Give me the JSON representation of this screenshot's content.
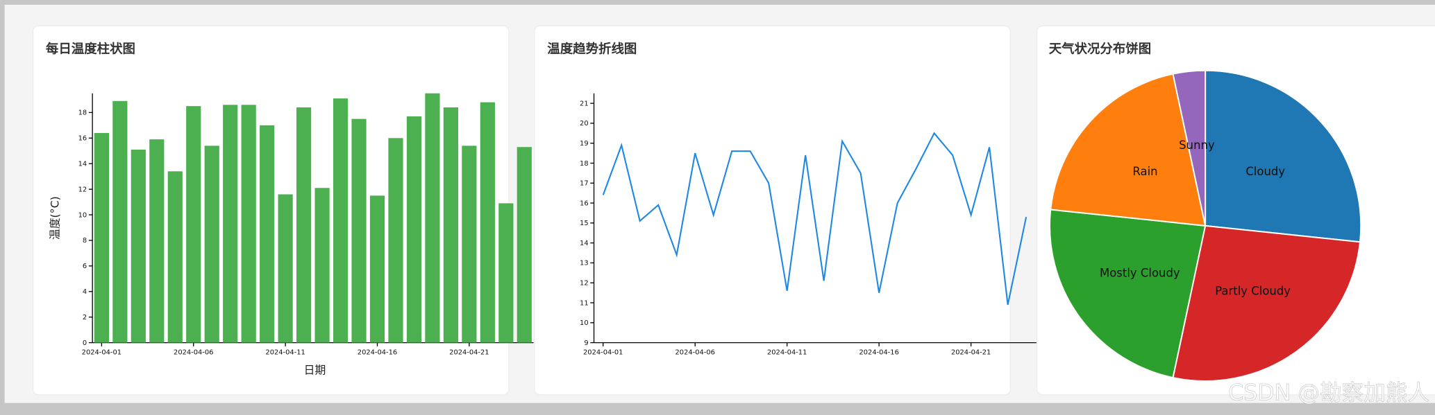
{
  "chart_data": [
    {
      "type": "bar",
      "title": "每日温度柱状图",
      "ylabel": "温度(°C)",
      "xlabel": "日期",
      "color": "#4caf50",
      "x": [
        "2024-04-01",
        "2024-04-02",
        "2024-04-03",
        "2024-04-04",
        "2024-04-05",
        "2024-04-06",
        "2024-04-07",
        "2024-04-08",
        "2024-04-09",
        "2024-04-10",
        "2024-04-11",
        "2024-04-12",
        "2024-04-13",
        "2024-04-14",
        "2024-04-15",
        "2024-04-16",
        "2024-04-17",
        "2024-04-18",
        "2024-04-19",
        "2024-04-20",
        "2024-04-21",
        "2024-04-22",
        "2024-04-23",
        "2024-04-24"
      ],
      "values": [
        16.4,
        18.9,
        15.1,
        15.9,
        13.4,
        18.5,
        15.4,
        18.6,
        18.6,
        17.0,
        11.6,
        18.4,
        12.1,
        19.1,
        17.5,
        11.5,
        16.0,
        17.7,
        19.5,
        18.4,
        15.4,
        18.8,
        10.9,
        15.3
      ],
      "ylim": [
        0,
        19.5
      ],
      "yticks": [
        0,
        2,
        4,
        6,
        8,
        10,
        12,
        14,
        16,
        18
      ],
      "xticks": [
        "2024-04-01",
        "2024-04-06",
        "2024-04-11",
        "2024-04-16",
        "2024-04-21"
      ]
    },
    {
      "type": "line",
      "title": "温度趋势折线图",
      "color": "#1e88e5",
      "x": [
        "2024-04-01",
        "2024-04-02",
        "2024-04-03",
        "2024-04-04",
        "2024-04-05",
        "2024-04-06",
        "2024-04-07",
        "2024-04-08",
        "2024-04-09",
        "2024-04-10",
        "2024-04-11",
        "2024-04-12",
        "2024-04-13",
        "2024-04-14",
        "2024-04-15",
        "2024-04-16",
        "2024-04-17",
        "2024-04-18",
        "2024-04-19",
        "2024-04-20",
        "2024-04-21",
        "2024-04-22",
        "2024-04-23",
        "2024-04-24"
      ],
      "values": [
        16.4,
        18.9,
        15.1,
        15.9,
        13.4,
        18.5,
        15.4,
        18.6,
        18.6,
        17.0,
        11.6,
        18.4,
        12.1,
        19.1,
        17.5,
        11.5,
        16.0,
        17.7,
        19.5,
        18.4,
        15.4,
        18.8,
        10.9,
        15.3
      ],
      "ylim": [
        9,
        21.5
      ],
      "yticks": [
        9,
        10,
        11,
        12,
        13,
        14,
        15,
        16,
        17,
        18,
        19,
        20,
        21
      ],
      "xticks": [
        "2024-04-01",
        "2024-04-06",
        "2024-04-11",
        "2024-04-16",
        "2024-04-21"
      ]
    },
    {
      "type": "pie",
      "title": "天气状况分布饼图",
      "categories": [
        "Cloudy",
        "Partly Cloudy",
        "Mostly Cloudy",
        "Rain",
        "Sunny"
      ],
      "values": [
        8,
        8,
        7,
        6,
        1
      ],
      "colors": [
        "#1f77b4",
        "#d62728",
        "#2ca02c",
        "#ff7f0e",
        "#9467bd"
      ]
    }
  ],
  "watermark": "CSDN @勘察加熊人"
}
